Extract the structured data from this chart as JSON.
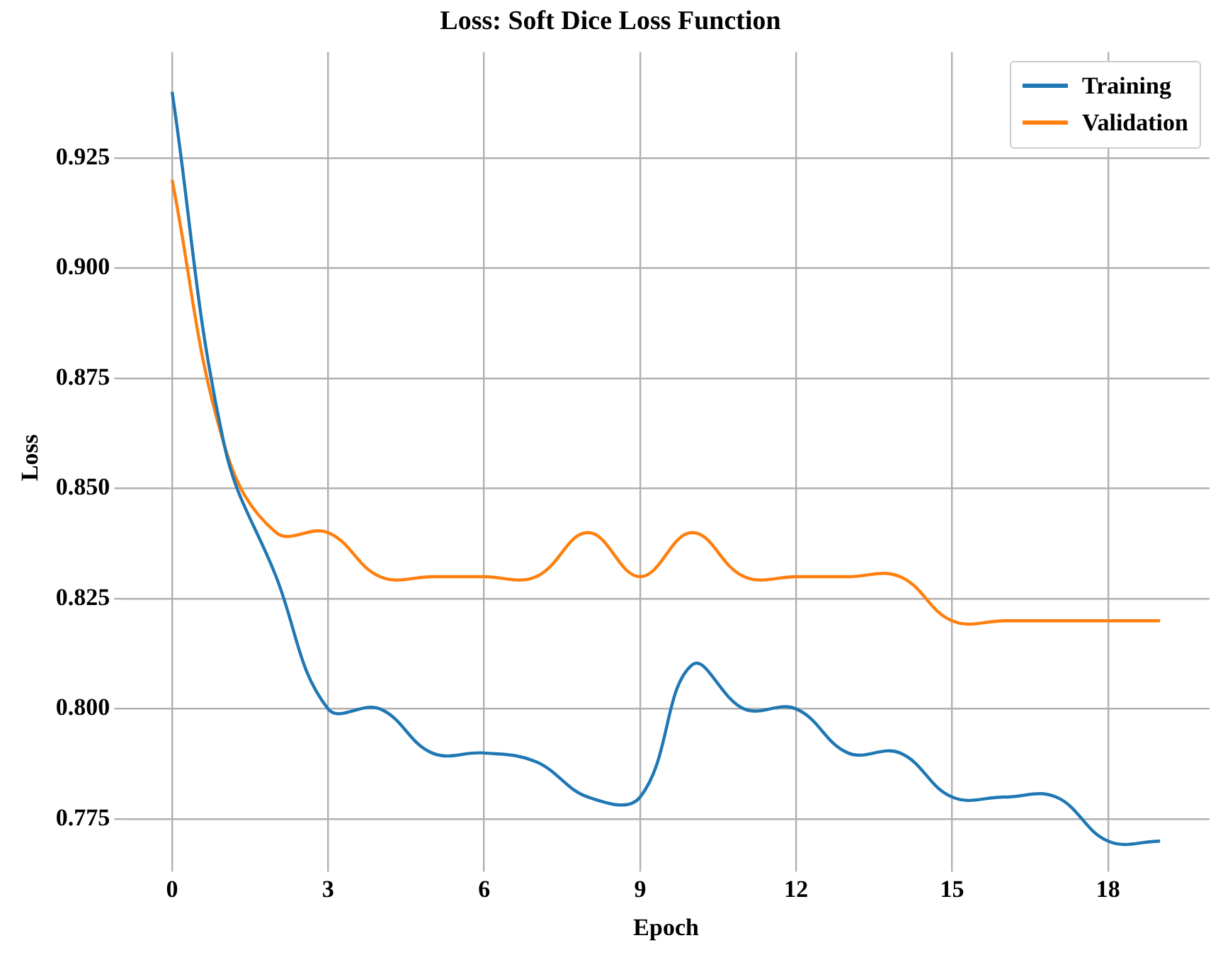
{
  "chart_data": {
    "type": "line",
    "title": "Loss: Soft Dice Loss Function",
    "xlabel": "Epoch",
    "ylabel": "Loss",
    "x": [
      0,
      1,
      2,
      3,
      4,
      5,
      6,
      7,
      8,
      9,
      10,
      11,
      12,
      13,
      14,
      15,
      16,
      17,
      18,
      19
    ],
    "series": [
      {
        "name": "Training",
        "color": "#1f77b4",
        "values": [
          0.94,
          0.86,
          0.83,
          0.8,
          0.8,
          0.79,
          0.79,
          0.788,
          0.78,
          0.78,
          0.81,
          0.8,
          0.8,
          0.79,
          0.79,
          0.78,
          0.78,
          0.78,
          0.77,
          0.77
        ]
      },
      {
        "name": "Validation",
        "color": "#ff7f0e",
        "values": [
          0.92,
          0.86,
          0.84,
          0.84,
          0.83,
          0.83,
          0.83,
          0.83,
          0.84,
          0.83,
          0.84,
          0.83,
          0.83,
          0.83,
          0.83,
          0.82,
          0.82,
          0.82,
          0.82,
          0.82
        ]
      }
    ],
    "xlim": [
      -0.95,
      19.95
    ],
    "xticks": [
      0,
      3,
      6,
      9,
      12,
      15,
      18
    ],
    "ylim": [
      0.765,
      0.949
    ],
    "yticks": [
      {
        "value": 0.775,
        "label": "0.775"
      },
      {
        "value": 0.8,
        "label": "0.800"
      },
      {
        "value": 0.825,
        "label": "0.825"
      },
      {
        "value": 0.85,
        "label": "0.850"
      },
      {
        "value": 0.875,
        "label": "0.875"
      },
      {
        "value": 0.9,
        "label": "0.900"
      },
      {
        "value": 0.925,
        "label": "0.925"
      }
    ],
    "grid": true,
    "legend": "top right",
    "marker": "none",
    "line_style": "solid"
  }
}
